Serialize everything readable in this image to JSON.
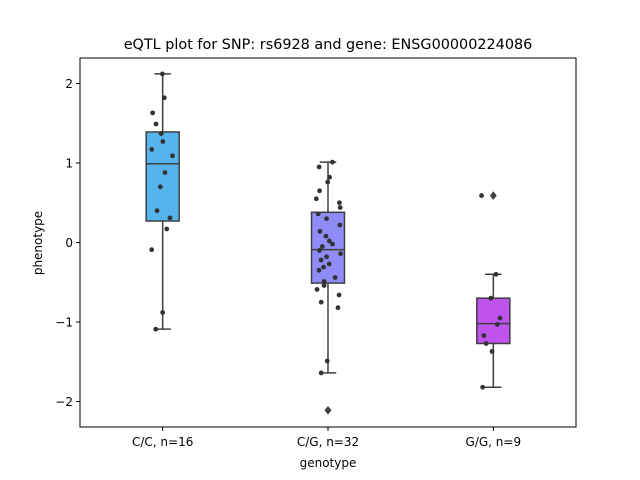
{
  "chart_data": {
    "type": "box",
    "title": "eQTL plot for SNP: rs6928 and gene: ENSG00000224086",
    "xlabel": "genotype",
    "ylabel": "phenotype",
    "ylim": [
      -2.32,
      2.32
    ],
    "yticks": [
      -2,
      -1,
      0,
      1,
      2
    ],
    "ytick_labels": [
      "−2",
      "−1",
      "0",
      "1",
      "2"
    ],
    "grid": false,
    "legend": "none",
    "categories": [
      "C/C, n=16",
      "C/G, n=32",
      "G/G, n=9"
    ],
    "boxes": [
      {
        "category": "C/C, n=16",
        "color": "#56b4ed",
        "q1": 0.27,
        "median": 0.99,
        "q3": 1.39,
        "whisker_low": -1.09,
        "whisker_high": 2.12,
        "outliers": [],
        "points": [
          2.12,
          1.82,
          1.63,
          1.49,
          1.37,
          1.27,
          1.17,
          1.09,
          0.88,
          0.7,
          0.4,
          0.31,
          0.17,
          -0.09,
          -0.88,
          -1.09
        ]
      },
      {
        "category": "C/G, n=32",
        "color": "#8f8cf8",
        "q1": -0.51,
        "median": -0.09,
        "q3": 0.38,
        "whisker_low": -1.64,
        "whisker_high": 1.01,
        "outliers": [
          -2.11
        ],
        "points": [
          1.01,
          0.95,
          0.82,
          0.76,
          0.65,
          0.55,
          0.5,
          0.44,
          0.36,
          0.3,
          0.22,
          0.14,
          0.08,
          0.02,
          -0.02,
          -0.05,
          -0.1,
          -0.14,
          -0.18,
          -0.22,
          -0.27,
          -0.31,
          -0.35,
          -0.44,
          -0.49,
          -0.54,
          -0.59,
          -0.66,
          -0.75,
          -0.82,
          -1.49,
          -1.64
        ]
      },
      {
        "category": "G/G, n=9",
        "color": "#c052ee",
        "q1": -1.27,
        "median": -1.02,
        "q3": -0.7,
        "whisker_low": -1.82,
        "whisker_high": -0.4,
        "outliers": [
          0.59
        ],
        "points": [
          -0.4,
          -0.7,
          -0.95,
          -1.03,
          -1.17,
          -1.27,
          -1.37,
          -1.82,
          0.59
        ]
      }
    ]
  }
}
